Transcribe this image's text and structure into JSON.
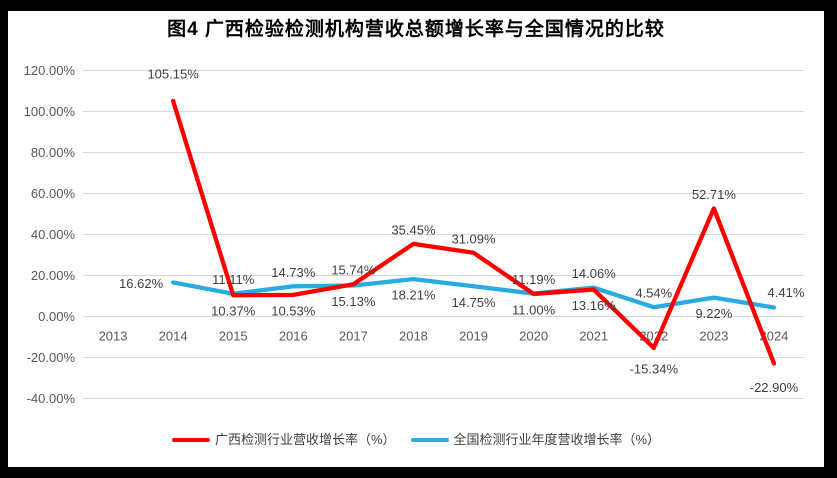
{
  "window": {
    "background": "#000000",
    "canvas_background": "#ffffff"
  },
  "colors": {
    "gridline": "#d9d9d9",
    "axis_text": "#595959",
    "data_label_text": "#3f3f3f",
    "title_text": "#000000",
    "legend_text": "#404040"
  },
  "chart_data": {
    "type": "line",
    "title": "图4 广西检验检测机构营收总额增长率与全国情况的比较",
    "categories": [
      "2013",
      "2014",
      "2015",
      "2016",
      "2017",
      "2018",
      "2019",
      "2020",
      "2021",
      "2022",
      "2023",
      "2024"
    ],
    "grid": true,
    "legend_position": "bottom",
    "y_axis": {
      "min": -40,
      "max": 120,
      "step": 20,
      "tick_labels": [
        "120.00%",
        "100.00%",
        "80.00%",
        "60.00%",
        "40.00%",
        "20.00%",
        "0.00%",
        "-20.00%",
        "-40.00%"
      ]
    },
    "series": [
      {
        "name": "广西检测行业营收增长率（%）",
        "color": "#ff0000",
        "values": [
          null,
          105.15,
          10.37,
          10.53,
          15.74,
          35.45,
          31.09,
          11.0,
          13.16,
          -15.34,
          52.71,
          -22.9
        ],
        "data_labels": [
          null,
          "105.15%",
          "10.37%",
          "10.53%",
          "15.74%",
          "35.45%",
          "31.09%",
          "11.00%",
          "13.16%",
          "-15.34%",
          "52.71%",
          "-22.90%"
        ],
        "label_positions": [
          null,
          "above",
          "below",
          "below",
          "above",
          "above",
          "above",
          "below",
          "below",
          "below",
          "above",
          "below"
        ],
        "label_offsets": {
          "1": [
            0,
            -13
          ],
          "9": [
            0,
            5
          ],
          "11": [
            0,
            8
          ]
        }
      },
      {
        "name": "全国检测行业年度营收增长率（%）",
        "color": "#29abe2",
        "values": [
          null,
          16.62,
          11.11,
          14.73,
          15.13,
          18.21,
          14.75,
          11.19,
          14.06,
          4.54,
          9.22,
          4.41
        ],
        "data_labels": [
          null,
          "16.62%",
          "11.11%",
          "14.73%",
          "15.13%",
          "18.21%",
          "14.75%",
          "11.19%",
          "14.06%",
          "4.54%",
          "9.22%",
          "4.41%"
        ],
        "label_positions": [
          null,
          "left",
          "above",
          "above",
          "below",
          "below",
          "below",
          "above",
          "above",
          "above",
          "below",
          "above"
        ],
        "label_offsets": {
          "11": [
            12,
            -1
          ]
        }
      }
    ]
  }
}
